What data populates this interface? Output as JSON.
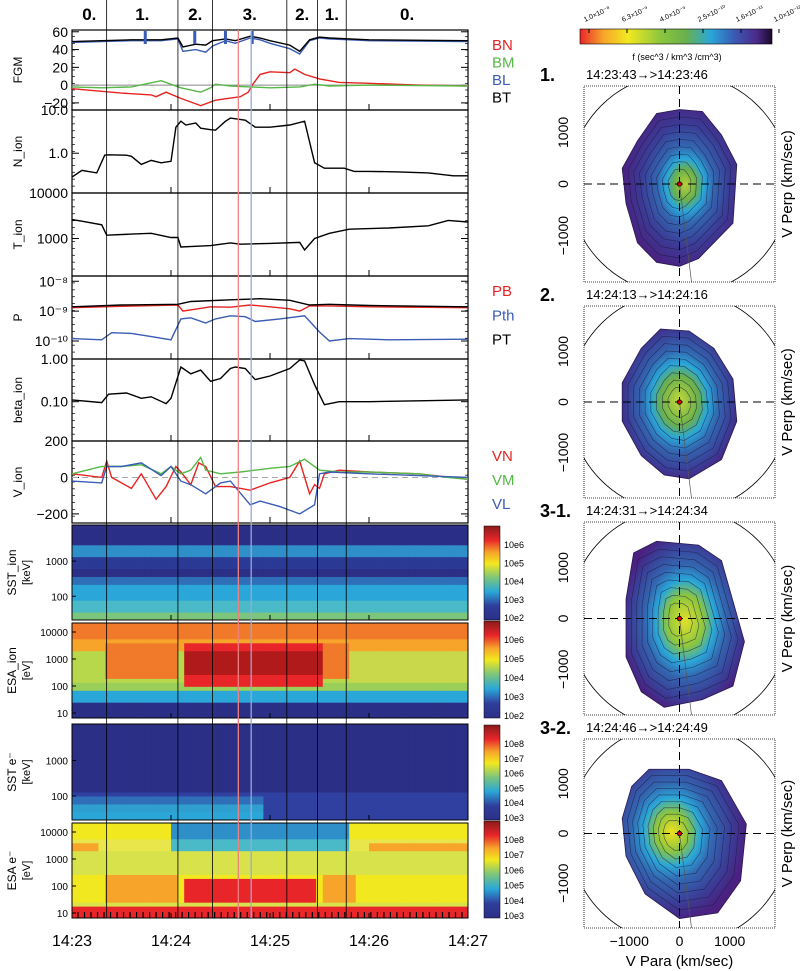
{
  "chart_data": [
    {
      "id": "timeseries",
      "type": "line",
      "time_axis": {
        "tick_labels": [
          "14:23",
          "14:24",
          "14:25",
          "14:26",
          "14:27"
        ],
        "tick_minutes": [
          0,
          1,
          2,
          3,
          4
        ],
        "range_minutes": [
          0,
          4.0
        ]
      },
      "regions": {
        "labels": [
          "0.",
          "1.",
          "2.",
          "3.",
          "2.",
          "1.",
          "0."
        ],
        "boundaries_minutes": [
          0.35,
          1.07,
          1.42,
          2.17,
          2.48,
          2.77
        ]
      },
      "markers": [
        {
          "name": "red-line",
          "minute": 1.68,
          "color": "#f08080"
        },
        {
          "name": "blue-line",
          "minute": 1.81,
          "color": "#99a8dd"
        }
      ],
      "fgm_ticks_minutes": [
        0.74,
        1.24,
        1.55,
        1.82
      ],
      "panels": [
        {
          "key": "fgm",
          "ylabel": "FGM",
          "scale": "linear",
          "ylim": [
            -28,
            62
          ],
          "yticks": [
            -20,
            0,
            20,
            40,
            60
          ],
          "ytick_labels": [
            "−20",
            "0",
            "20",
            "40",
            "60"
          ],
          "zero_line": true,
          "series": [
            {
              "name": "BN",
              "color": "#e52421",
              "x": [
                0,
                0.3,
                0.5,
                0.8,
                0.85,
                0.95,
                1.1,
                1.3,
                1.45,
                1.7,
                1.78,
                1.82,
                1.9,
                2.0,
                2.2,
                2.25,
                2.35,
                2.5,
                2.7,
                3.0,
                3.5,
                4.0
              ],
              "y": [
                -4,
                -7,
                -9,
                -11,
                -13,
                -8,
                -15,
                -23,
                -17,
                -13,
                -8,
                0,
                12,
                15,
                14,
                18,
                12,
                7,
                3,
                2,
                0,
                -1
              ]
            },
            {
              "name": "BM",
              "color": "#56b846",
              "x": [
                0,
                0.3,
                0.6,
                0.9,
                1.1,
                1.3,
                1.4,
                1.45,
                1.6,
                1.8,
                2.0,
                2.3,
                2.45,
                2.6,
                3.0,
                4.0
              ],
              "y": [
                -2,
                -3,
                -2,
                5,
                -3,
                -8,
                -3,
                1,
                -1,
                -2,
                -3,
                -2,
                1,
                -1,
                0,
                -1
              ]
            },
            {
              "name": "BL",
              "color": "#3a5cb4",
              "x": [
                0,
                0.3,
                0.6,
                0.9,
                1.07,
                1.12,
                1.25,
                1.35,
                1.42,
                1.55,
                1.65,
                1.8,
                1.9,
                2.0,
                2.2,
                2.3,
                2.4,
                2.5,
                2.6,
                3.0,
                4.0
              ],
              "y": [
                48,
                49,
                50,
                50,
                52,
                38,
                40,
                37,
                44,
                50,
                47,
                53,
                51,
                47,
                41,
                35,
                50,
                53,
                52,
                50,
                49
              ]
            },
            {
              "name": "BT",
              "color": "#000000",
              "x": [
                0,
                0.3,
                0.6,
                0.9,
                1.07,
                1.12,
                1.25,
                1.35,
                1.42,
                1.55,
                1.65,
                1.8,
                1.9,
                2.0,
                2.2,
                2.3,
                2.4,
                2.5,
                2.6,
                3.0,
                4.0
              ],
              "y": [
                49,
                50,
                51,
                51,
                53,
                43,
                46,
                45,
                50,
                52,
                50,
                55,
                53,
                50,
                45,
                38,
                51,
                54,
                53,
                51,
                50
              ]
            }
          ]
        },
        {
          "key": "n_ion",
          "ylabel": "N_ion",
          "scale": "log",
          "ylim": [
            0.12,
            10
          ],
          "yticks": [
            1.0,
            10.0
          ],
          "ytick_labels": [
            "1.0",
            "10.0"
          ],
          "series": [
            {
              "name": "N_ion",
              "color": "#000000",
              "x": [
                0,
                0.1,
                0.25,
                0.33,
                0.37,
                0.55,
                0.6,
                0.7,
                0.8,
                0.9,
                1.0,
                1.05,
                1.1,
                1.15,
                1.25,
                1.3,
                1.4,
                1.45,
                1.55,
                1.6,
                1.75,
                1.85,
                2.0,
                2.2,
                2.35,
                2.45,
                2.55,
                2.75,
                2.85,
                3.0,
                3.3,
                3.6,
                3.85,
                4.0
              ],
              "y": [
                0.28,
                0.4,
                0.35,
                0.9,
                0.92,
                0.9,
                0.85,
                0.55,
                0.68,
                0.6,
                0.65,
                4.0,
                5.5,
                4.5,
                5.0,
                3.8,
                3.5,
                3.4,
                5.5,
                6.5,
                5.8,
                4.0,
                4.0,
                4.5,
                5.5,
                0.6,
                0.45,
                0.45,
                0.38,
                0.38,
                0.37,
                0.35,
                0.3,
                0.3
              ]
            }
          ]
        },
        {
          "key": "t_ion",
          "ylabel": "T_ion",
          "scale": "log",
          "ylim": [
            150,
            10000
          ],
          "yticks": [
            1000,
            10000
          ],
          "ytick_labels": [
            "1000",
            "10000"
          ],
          "series": [
            {
              "name": "T_ion",
              "color": "#000000",
              "x": [
                0,
                0.1,
                0.3,
                0.35,
                0.6,
                0.8,
                1.0,
                1.07,
                1.1,
                1.3,
                1.4,
                1.6,
                1.7,
                2.0,
                2.3,
                2.35,
                2.45,
                2.6,
                2.8,
                3.2,
                3.6,
                3.8,
                4.0
              ],
              "y": [
                2600,
                2400,
                2000,
                1180,
                1250,
                1300,
                1050,
                1050,
                650,
                680,
                700,
                800,
                750,
                780,
                820,
                560,
                1000,
                1300,
                1600,
                1700,
                1900,
                2500,
                2300
              ]
            }
          ]
        },
        {
          "key": "p",
          "ylabel": "P",
          "scale": "log",
          "ylim": [
            2.5e-11,
            1.5e-08
          ],
          "yticks": [
            1e-10,
            1e-09,
            1e-08
          ],
          "ytick_labels": [
            "10⁻¹⁰",
            "10⁻⁹",
            "10⁻⁸"
          ],
          "series": [
            {
              "name": "PB",
              "color": "#e52421",
              "x": [
                0,
                0.5,
                1.07,
                1.12,
                1.4,
                1.6,
                1.8,
                2.0,
                2.2,
                2.3,
                2.4,
                2.6,
                3.0,
                4.0
              ],
              "y": [
                1.3e-09,
                1.45e-09,
                1.6e-09,
                1e-09,
                1.4e-09,
                1.35e-09,
                1.6e-09,
                1.4e-09,
                1.2e-09,
                1e-09,
                1.5e-09,
                1.5e-09,
                1.4e-09,
                1.3e-09
              ]
            },
            {
              "name": "Pth",
              "color": "#3a5cb4",
              "x": [
                0,
                0.3,
                0.4,
                0.6,
                0.8,
                1.0,
                1.1,
                1.2,
                1.35,
                1.45,
                1.6,
                1.75,
                1.85,
                2.1,
                2.35,
                2.5,
                2.6,
                2.8,
                3.2,
                4.0
              ],
              "y": [
                1.2e-10,
                1.1e-10,
                1.9e-10,
                1.8e-10,
                1.4e-10,
                1.1e-10,
                5.5e-10,
                6e-10,
                4e-10,
                5.5e-10,
                7e-10,
                6.5e-10,
                4.5e-10,
                5.5e-10,
                7e-10,
                2e-10,
                1e-10,
                1.2e-10,
                1.1e-10,
                1.15e-10
              ]
            },
            {
              "name": "PT",
              "color": "#000000",
              "x": [
                0,
                0.5,
                1.07,
                1.2,
                1.6,
                1.9,
                2.2,
                2.4,
                2.6,
                3.0,
                4.0
              ],
              "y": [
                1.4e-09,
                1.6e-09,
                1.7e-09,
                2.1e-09,
                2.4e-09,
                2.6e-09,
                2.3e-09,
                1.6e-09,
                1.7e-09,
                1.55e-09,
                1.4e-09
              ]
            }
          ]
        },
        {
          "key": "beta_ion",
          "ylabel": "beta_ion",
          "scale": "log",
          "ylim": [
            0.012,
            1.0
          ],
          "yticks": [
            0.1,
            1.0
          ],
          "ytick_labels": [
            "0.10",
            "1.00"
          ],
          "series": [
            {
              "name": "beta_ion",
              "color": "#000000",
              "x": [
                0,
                0.3,
                0.37,
                0.55,
                0.7,
                0.8,
                0.95,
                1.0,
                1.1,
                1.2,
                1.3,
                1.4,
                1.5,
                1.6,
                1.65,
                1.75,
                1.85,
                2.0,
                2.2,
                2.3,
                2.35,
                2.45,
                2.55,
                2.7,
                3.0,
                3.5,
                4.0
              ],
              "y": [
                0.11,
                0.095,
                0.15,
                0.16,
                0.12,
                0.13,
                0.09,
                0.12,
                0.65,
                0.45,
                0.55,
                0.3,
                0.35,
                0.6,
                0.65,
                0.6,
                0.33,
                0.4,
                0.6,
                0.95,
                0.9,
                0.25,
                0.085,
                0.1,
                0.1,
                0.105,
                0.11
              ]
            }
          ]
        },
        {
          "key": "v_ion",
          "ylabel": "V_ion",
          "scale": "linear",
          "ylim": [
            -250,
            200
          ],
          "yticks": [
            -200,
            0,
            200
          ],
          "ytick_labels": [
            "−200",
            "0",
            "200"
          ],
          "dashed_zero": true,
          "series": [
            {
              "name": "VN",
              "color": "#e52421",
              "x": [
                0,
                0.3,
                0.35,
                0.4,
                0.5,
                0.6,
                0.7,
                0.85,
                0.95,
                1.05,
                1.1,
                1.2,
                1.28,
                1.35,
                1.45,
                1.6,
                1.8,
                2.0,
                2.2,
                2.3,
                2.4,
                2.45,
                2.5,
                2.55,
                2.7,
                3.0,
                3.5,
                4.0
              ],
              "y": [
                20,
                0,
                90,
                0,
                -30,
                -60,
                20,
                -120,
                -50,
                60,
                30,
                -40,
                80,
                60,
                -50,
                -50,
                -70,
                -30,
                0,
                90,
                -90,
                -40,
                -60,
                20,
                40,
                30,
                20,
                -10
              ]
            },
            {
              "name": "VM",
              "color": "#56b846",
              "x": [
                0,
                0.3,
                0.5,
                0.7,
                0.9,
                1.0,
                1.1,
                1.2,
                1.3,
                1.35,
                1.5,
                1.7,
                2.0,
                2.2,
                2.35,
                2.5,
                2.7,
                3.0,
                3.5,
                3.8,
                4.0
              ],
              "y": [
                20,
                60,
                60,
                70,
                20,
                60,
                20,
                40,
                110,
                40,
                20,
                30,
                50,
                60,
                100,
                40,
                30,
                30,
                20,
                0,
                -10
              ]
            },
            {
              "name": "VL",
              "color": "#3a5cb4",
              "x": [
                0,
                0.3,
                0.35,
                0.5,
                0.7,
                0.9,
                1.0,
                1.1,
                1.2,
                1.35,
                1.5,
                1.6,
                1.8,
                1.9,
                2.1,
                2.3,
                2.45,
                2.5,
                2.6,
                3.0,
                3.5,
                4.0
              ],
              "y": [
                -20,
                -30,
                60,
                60,
                80,
                10,
                60,
                -20,
                -40,
                -90,
                -30,
                -20,
                -150,
                -130,
                -160,
                -200,
                -150,
                20,
                30,
                20,
                10,
                0
              ]
            }
          ]
        }
      ],
      "spectrograms": [
        {
          "key": "sst_ion",
          "ylabel": "SST_ion",
          "unit": "[keV]",
          "ytick_labels": [
            "100",
            "1000"
          ],
          "colorbar_labels": [
            "10e2",
            "10e3",
            "10e4",
            "10e5",
            "10e6"
          ]
        },
        {
          "key": "esa_ion",
          "ylabel": "ESA_ion",
          "unit": "[eV]",
          "ytick_labels": [
            "10",
            "100",
            "1000",
            "10000"
          ],
          "colorbar_labels": [
            "10e2",
            "10e3",
            "10e4",
            "10e5",
            "10e6"
          ]
        },
        {
          "key": "sst_e",
          "ylabel": "SST e⁻",
          "unit": "[keV]",
          "ytick_labels": [
            "100",
            "1000"
          ],
          "colorbar_labels": [
            "10e3",
            "10e4",
            "10e5",
            "10e6",
            "10e7",
            "10e8"
          ]
        },
        {
          "key": "esa_e",
          "ylabel": "ESA e⁻",
          "unit": "[eV]",
          "ytick_labels": [
            "10",
            "100",
            "1000",
            "10000"
          ],
          "colorbar_labels": [
            "10e3",
            "10e4",
            "10e5",
            "10e6",
            "10e7",
            "10e8"
          ]
        }
      ]
    },
    {
      "id": "distribution-functions",
      "type": "heatmap",
      "colorbar": {
        "tick_labels": [
          "1.0×10⁻⁸",
          "6.3×10⁻⁹",
          "4.0×10⁻⁹",
          "2.5×10⁻¹⁰",
          "1.6×10⁻¹¹",
          "1.0×10⁻¹²"
        ],
        "label": "f (sec^3 / km^3 /cm^3)"
      },
      "xlabel": "V Para (km/sec)",
      "ylabel": "V Perp (km/sec)",
      "axis_ticks": [
        -1000,
        0,
        1000
      ],
      "axis_tick_labels": [
        "−1000",
        "0",
        "1000"
      ],
      "ylim": [
        -1900,
        1900
      ],
      "xlim": [
        -1900,
        1900
      ],
      "plots": [
        {
          "label": "1.",
          "time": "14:23:43→>14:23:46"
        },
        {
          "label": "2.",
          "time": "14:24:13→>14:24:16"
        },
        {
          "label": "3-1.",
          "time": "14:24:31→>14:24:34"
        },
        {
          "label": "3-2.",
          "time": "14:24:46→>14:24:49"
        }
      ]
    }
  ]
}
